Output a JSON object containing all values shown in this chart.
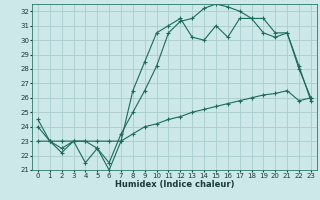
{
  "xlabel": "Humidex (Indice chaleur)",
  "ylabel": "",
  "bg_color": "#cce8e8",
  "grid_color": "#aacccc",
  "line_color": "#1a6b5a",
  "xlim": [
    -0.5,
    23.5
  ],
  "ylim": [
    21,
    32.5
  ],
  "yticks": [
    21,
    22,
    23,
    24,
    25,
    26,
    27,
    28,
    29,
    30,
    31,
    32
  ],
  "xticks": [
    0,
    1,
    2,
    3,
    4,
    5,
    6,
    7,
    8,
    9,
    10,
    11,
    12,
    13,
    14,
    15,
    16,
    17,
    18,
    19,
    20,
    21,
    22,
    23
  ],
  "line_min": [
    23.0,
    23.0,
    23.0,
    23.0,
    23.0,
    23.0,
    23.0,
    23.0,
    23.5,
    24.0,
    24.2,
    24.5,
    24.7,
    25.0,
    25.2,
    25.4,
    25.6,
    25.8,
    26.0,
    26.2,
    26.3,
    26.5,
    25.8,
    26.0
  ],
  "line_max": [
    24.5,
    23.0,
    22.2,
    23.0,
    21.5,
    22.5,
    21.0,
    23.0,
    26.5,
    28.5,
    30.5,
    31.0,
    31.5,
    30.2,
    30.0,
    31.0,
    30.2,
    31.5,
    31.5,
    30.5,
    30.2,
    30.5,
    28.2,
    25.8
  ],
  "line_actual": [
    24.0,
    23.0,
    22.5,
    23.0,
    23.0,
    22.5,
    21.5,
    23.5,
    25.0,
    26.5,
    28.2,
    30.5,
    31.3,
    31.5,
    32.2,
    32.5,
    32.3,
    32.0,
    31.5,
    31.5,
    30.5,
    30.5,
    28.0,
    26.0
  ],
  "tick_fontsize": 5,
  "xlabel_fontsize": 6,
  "xlabel_fontweight": "bold"
}
